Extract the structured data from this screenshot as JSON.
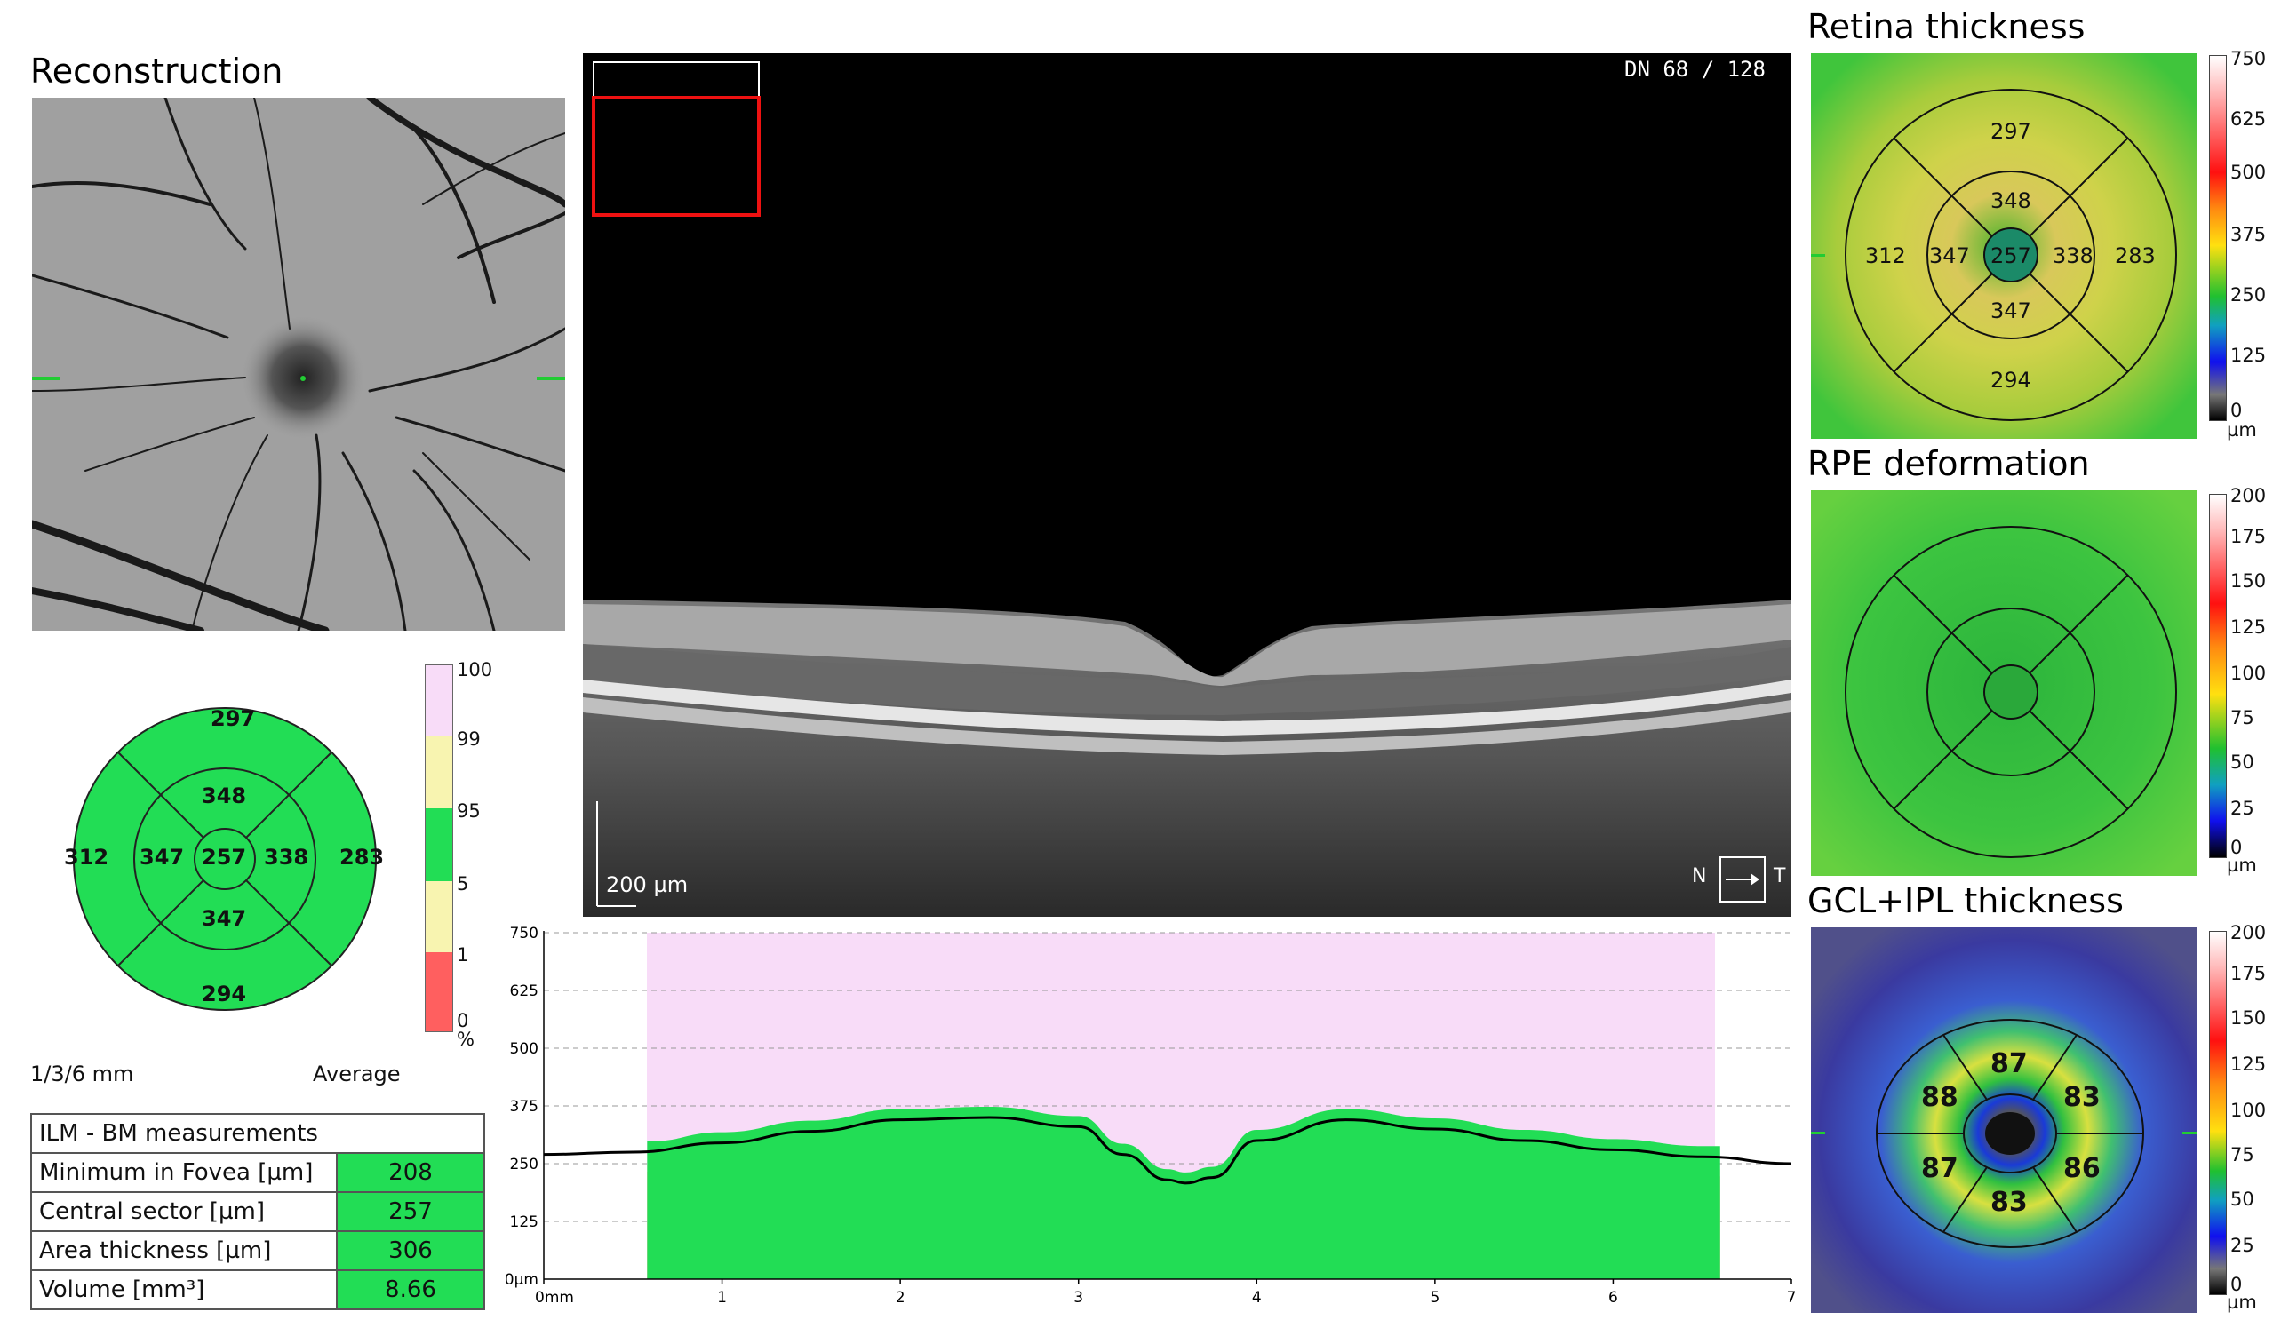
{
  "reconstruction": {
    "title": "Reconstruction"
  },
  "bscan": {
    "dn_label": "DN 68 / 128",
    "scale_label": "200 µm",
    "nasal": "N",
    "temporal": "T"
  },
  "etdrs": {
    "values": {
      "sup_outer": "297",
      "sup_inner": "348",
      "nas_outer": "312",
      "nas_inner": "347",
      "center": "257",
      "temp_inner": "338",
      "temp_outer": "283",
      "inf_inner": "347",
      "inf_outer": "294"
    },
    "scale_label": "1/3/6 mm",
    "mode_label": "Average",
    "color_normal": "#22dd55"
  },
  "norm_scale": {
    "ticks": [
      "100",
      "99",
      "95",
      "5",
      "1",
      "0"
    ],
    "unit": "%",
    "colors": {
      "above99": "#f8dcf8",
      "yellow": "#f8f4b0",
      "green": "#22dd55",
      "red": "#ff5f5f"
    }
  },
  "measurements": {
    "header": "ILM - BM measurements",
    "rows": [
      {
        "label": "Minimum in Fovea [µm]",
        "value": "208"
      },
      {
        "label": "Central sector [µm]",
        "value": "257"
      },
      {
        "label": "Area thickness [µm]",
        "value": "306"
      },
      {
        "label": "Volume [mm³]",
        "value": "8.66"
      }
    ]
  },
  "chart_data": {
    "type": "area",
    "xlabel": "mm",
    "ylabel": "µm",
    "xlim": [
      0,
      7
    ],
    "ylim": [
      0,
      750
    ],
    "x_ticks": [
      "0mm",
      "1",
      "2",
      "3",
      "4",
      "5",
      "6",
      "7"
    ],
    "y_ticks": [
      "0µm",
      "125",
      "250",
      "375",
      "500",
      "625",
      "750"
    ],
    "grid": true,
    "x": [
      0,
      0.5,
      1,
      1.5,
      2,
      2.5,
      3,
      3.25,
      3.5,
      3.6,
      3.75,
      4,
      4.5,
      5,
      5.5,
      6,
      6.5,
      7
    ],
    "thickness": [
      270,
      275,
      295,
      320,
      345,
      350,
      330,
      270,
      215,
      208,
      220,
      300,
      345,
      325,
      300,
      280,
      265,
      250
    ]
  },
  "retina_map": {
    "title": "Retina thickness",
    "values": {
      "sup_outer": "297",
      "sup_inner": "348",
      "nas_outer": "312",
      "nas_inner": "347",
      "center": "257",
      "temp_inner": "338",
      "temp_outer": "283",
      "inf_inner": "347",
      "inf_outer": "294"
    },
    "colorbar": {
      "ticks": [
        "750",
        "625",
        "500",
        "375",
        "250",
        "125",
        "0"
      ],
      "unit": "µm"
    }
  },
  "rpe_map": {
    "title": "RPE deformation",
    "colorbar": {
      "ticks": [
        "200",
        "175",
        "150",
        "125",
        "100",
        "75",
        "50",
        "25",
        "0"
      ],
      "unit": "µm"
    }
  },
  "gcl_map": {
    "title": "GCL+IPL thickness",
    "values": {
      "top": "87",
      "left_top": "88",
      "right_top": "83",
      "left_bottom": "87",
      "right_bottom": "86",
      "bottom": "83"
    },
    "colorbar": {
      "ticks": [
        "200",
        "175",
        "150",
        "125",
        "100",
        "75",
        "50",
        "25",
        "0"
      ],
      "unit": "µm"
    }
  }
}
